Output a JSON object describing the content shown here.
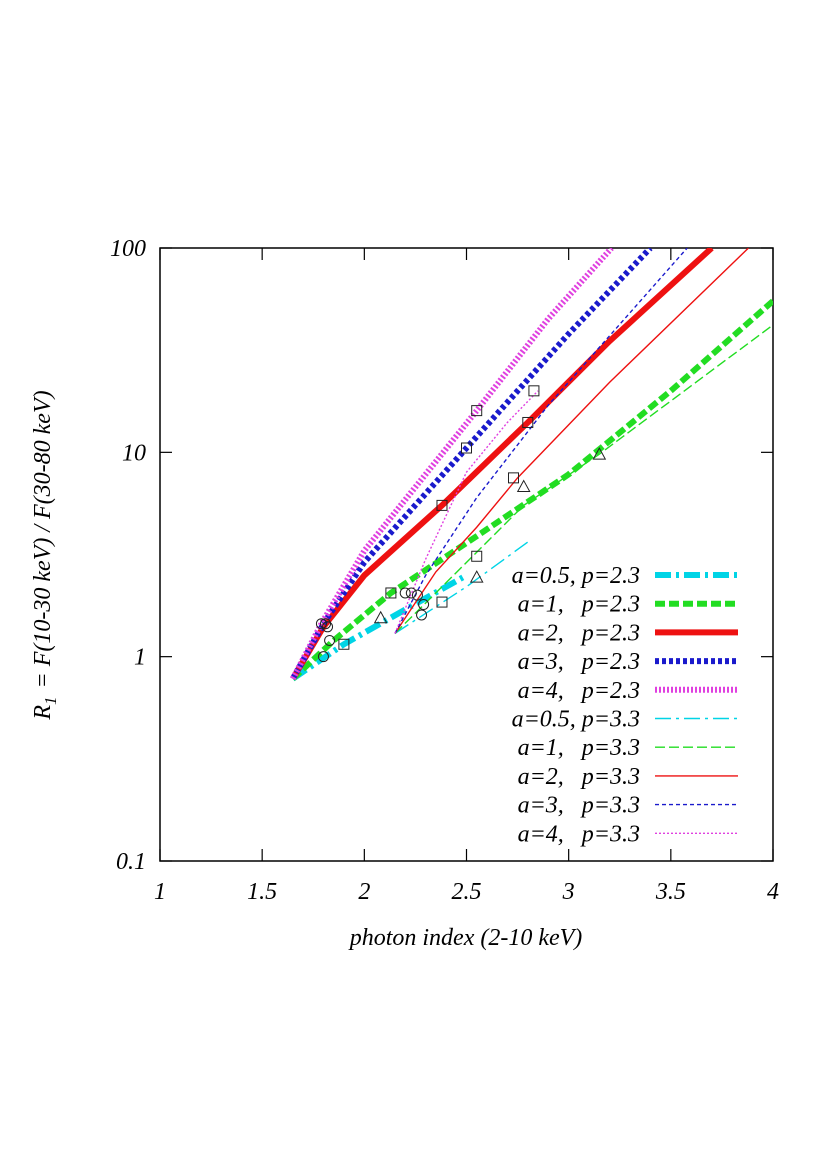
{
  "chart_data": {
    "type": "line",
    "xlabel": "photon index (2-10 keV)",
    "ylabel": [
      "R",
      "1",
      "= F(10-30 keV) / F(30-80 keV)"
    ],
    "xlim": [
      1,
      4
    ],
    "xticks": [
      1,
      1.5,
      2,
      2.5,
      3,
      3.5,
      4
    ],
    "ylim": [
      0.1,
      100
    ],
    "yticks": [
      0.1,
      1,
      10,
      100
    ],
    "ylog": true,
    "legend": "lower-right",
    "series": [
      {
        "name": "a=0.5, p=2.3",
        "color": "#00d4e6",
        "width": "thick",
        "dash": "dash-dot",
        "x": [
          1.65,
          1.9,
          2.2,
          2.5
        ],
        "values": [
          0.78,
          1.15,
          1.7,
          2.5
        ]
      },
      {
        "name": "a=1,   p=2.3",
        "color": "#22dd22",
        "width": "thick",
        "dash": "dashed",
        "x": [
          1.65,
          1.85,
          2.13,
          2.5,
          3,
          3.5,
          4
        ],
        "values": [
          0.78,
          1.2,
          2.05,
          3.6,
          7.8,
          20,
          55
        ]
      },
      {
        "name": "a=2,   p=2.3",
        "color": "#ee1111",
        "width": "thick",
        "dash": "solid",
        "x": [
          1.65,
          1.8,
          2.0,
          2.38,
          2.8,
          3.2,
          3.7
        ],
        "values": [
          0.78,
          1.4,
          2.5,
          5.5,
          14,
          35,
          100
        ]
      },
      {
        "name": "a=3,   p=2.3",
        "color": "#1a1acc",
        "width": "thick",
        "dash": "dotted",
        "x": [
          1.65,
          1.8,
          2.0,
          2.5,
          3.0,
          3.4
        ],
        "values": [
          0.78,
          1.45,
          2.9,
          10.5,
          38,
          100
        ]
      },
      {
        "name": "a=4,   p=2.3",
        "color": "#e040e0",
        "width": "thick",
        "dash": "fine-dotted",
        "x": [
          1.65,
          1.79,
          2.0,
          2.55,
          2.9,
          3.21
        ],
        "values": [
          0.78,
          1.45,
          3.3,
          16,
          45,
          100
        ]
      },
      {
        "name": "a=0.5, p=3.3",
        "color": "#00d4e6",
        "width": "thin",
        "dash": "dash-dot",
        "x": [
          2.15,
          2.5,
          2.81
        ],
        "values": [
          1.3,
          2.2,
          3.7
        ]
      },
      {
        "name": "a=1,   p=3.3",
        "color": "#22dd22",
        "width": "thin",
        "dash": "dashed",
        "x": [
          2.15,
          2.4,
          2.78,
          3.15,
          4
        ],
        "values": [
          1.3,
          2.3,
          5.5,
          9.8,
          42
        ]
      },
      {
        "name": "a=2,   p=3.3",
        "color": "#ee1111",
        "width": "thin",
        "dash": "solid",
        "x": [
          2.15,
          2.35,
          2.55,
          2.75,
          3.2,
          3.88
        ],
        "values": [
          1.3,
          2.6,
          4.3,
          7.5,
          22,
          100
        ]
      },
      {
        "name": "a=3,   p=3.3",
        "color": "#1a1acc",
        "width": "thin",
        "dash": "dotted",
        "x": [
          2.15,
          2.3,
          2.55,
          2.9,
          3.58
        ],
        "values": [
          1.3,
          2.5,
          6,
          17,
          100
        ]
      },
      {
        "name": "a=4,   p=3.3",
        "color": "#e040e0",
        "width": "thin",
        "dash": "fine-dotted",
        "x": [
          2.15,
          2.3,
          2.5,
          2.7,
          2.85
        ],
        "values": [
          1.3,
          3,
          8,
          14,
          20
        ]
      }
    ],
    "markers": [
      {
        "shape": "square",
        "x": [
          1.9,
          2.13,
          2.38,
          2.55,
          2.38,
          2.5,
          2.55,
          2.73,
          2.8,
          2.83
        ],
        "values": [
          1.15,
          2.05,
          1.85,
          3.1,
          5.5,
          10.5,
          16,
          7.5,
          14,
          20
        ]
      },
      {
        "shape": "circle",
        "x": [
          1.79,
          1.81,
          1.82,
          1.8,
          1.83,
          2.2,
          2.23,
          2.26,
          2.29,
          2.28
        ],
        "values": [
          1.45,
          1.45,
          1.4,
          1.0,
          1.2,
          2.05,
          2.05,
          2.0,
          1.8,
          1.6
        ]
      },
      {
        "shape": "triangle",
        "x": [
          2.08,
          2.55,
          2.78,
          3.15
        ],
        "values": [
          1.55,
          2.45,
          6.8,
          9.8
        ]
      }
    ]
  }
}
